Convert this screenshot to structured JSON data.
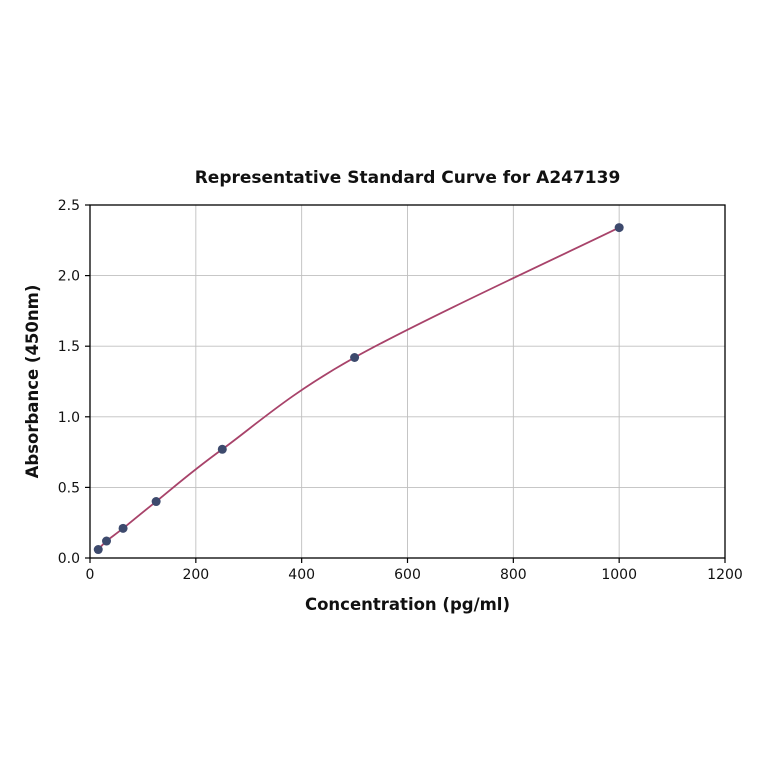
{
  "chart_data": {
    "type": "line",
    "title": "Representative Standard Curve for A247139",
    "xlabel": "Concentration (pg/ml)",
    "ylabel": "Absorbance (450nm)",
    "xlim": [
      0,
      1200
    ],
    "ylim": [
      0,
      2.5
    ],
    "xticks": [
      0,
      200,
      400,
      600,
      800,
      1000,
      1200
    ],
    "yticks": [
      0.0,
      0.5,
      1.0,
      1.5,
      2.0,
      2.5
    ],
    "grid": true,
    "points": [
      {
        "x": 15.6,
        "y": 0.06
      },
      {
        "x": 31.2,
        "y": 0.12
      },
      {
        "x": 62.5,
        "y": 0.21
      },
      {
        "x": 125,
        "y": 0.4
      },
      {
        "x": 250,
        "y": 0.77
      },
      {
        "x": 500,
        "y": 1.42
      },
      {
        "x": 1000,
        "y": 2.34
      }
    ],
    "colors": {
      "line": "#a8436a",
      "marker": "#3d4a6d",
      "grid": "#bfbfbf",
      "axis": "#000000",
      "text": "#111111",
      "background": "#ffffff"
    }
  }
}
